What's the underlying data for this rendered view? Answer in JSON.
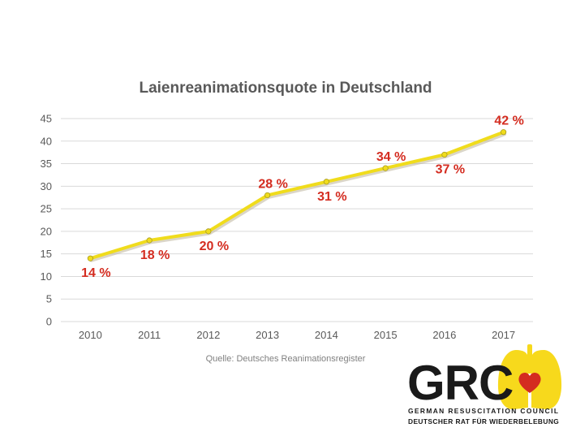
{
  "chart_data": {
    "type": "line",
    "title": "Laienreanimationsquote in Deutschland",
    "categories": [
      "2010",
      "2011",
      "2012",
      "2013",
      "2014",
      "2015",
      "2016",
      "2017"
    ],
    "values": [
      14,
      18,
      20,
      28,
      31,
      34,
      37,
      42
    ],
    "data_labels": [
      "14 %",
      "18 %",
      "20 %",
      "28 %",
      "31 %",
      "34 %",
      "37 %",
      "42 %"
    ],
    "y_ticks": [
      "0",
      "5",
      "10",
      "15",
      "20",
      "25",
      "30",
      "35",
      "40",
      "45"
    ],
    "ylim": [
      0,
      45
    ],
    "grid": true,
    "legend": false,
    "colors": {
      "line": "#f0dc1c",
      "labels": "#d42c20"
    }
  },
  "source": "Quelle: Deutsches Reanimationsregister",
  "logo": {
    "name": "GRC",
    "line1": "GERMAN RESUSCITATION COUNCIL",
    "line2": "DEUTSCHER RAT FÜR WIEDERBELEBUNG",
    "colors": {
      "lungs": "#f7d91c",
      "heart": "#d42c20",
      "text": "#1a1a1a"
    }
  }
}
